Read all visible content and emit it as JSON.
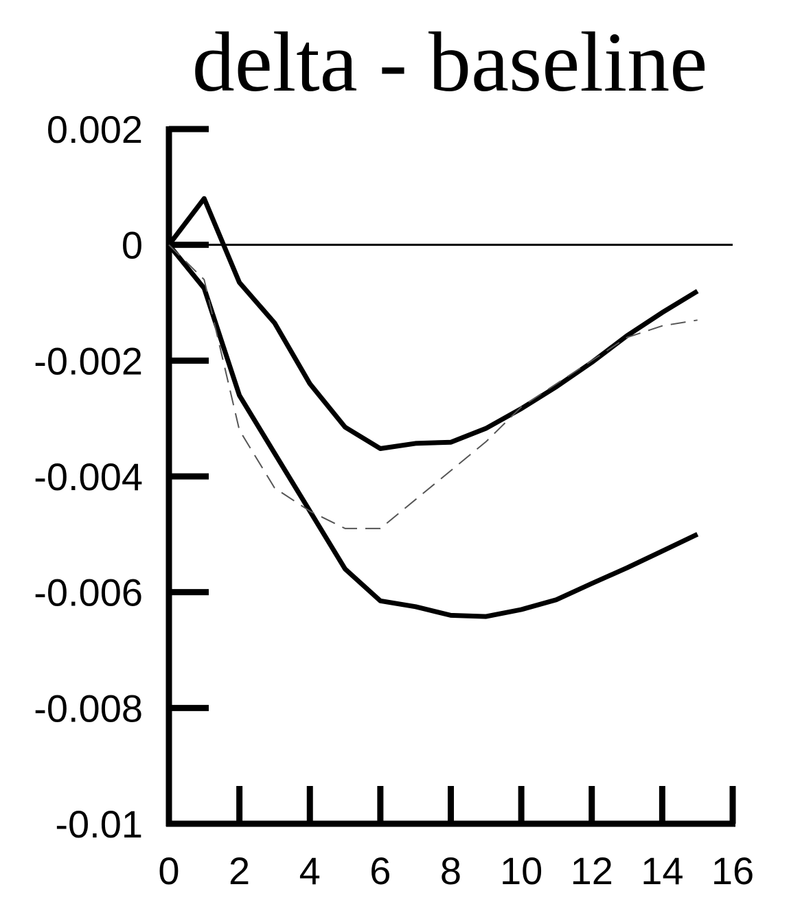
{
  "chart_data": {
    "type": "line",
    "title": "delta - baseline",
    "xlabel": "",
    "ylabel": "",
    "xlim": [
      0,
      16
    ],
    "ylim": [
      -0.01,
      0.002
    ],
    "grid": false,
    "x_ticks": [
      "0",
      "2",
      "4",
      "6",
      "8",
      "10",
      "12",
      "14",
      "16"
    ],
    "y_ticks": [
      "0.002",
      "0",
      "-0.002",
      "-0.004",
      "-0.006",
      "-0.008",
      "-0.01"
    ],
    "x_tick_values": [
      0,
      2,
      4,
      6,
      8,
      10,
      12,
      14,
      16
    ],
    "y_tick_values": [
      0.002,
      0,
      -0.002,
      -0.004,
      -0.006,
      -0.008,
      -0.01
    ],
    "reference_line_y": 0,
    "x": [
      0,
      1,
      2,
      3,
      4,
      5,
      6,
      7,
      8,
      9,
      10,
      11,
      12,
      13,
      14,
      15
    ],
    "series": [
      {
        "style": "solid-thick",
        "values": [
          0,
          0.0008,
          -0.00065,
          -0.00135,
          -0.0024,
          -0.00315,
          -0.00352,
          -0.00343,
          -0.00341,
          -0.00317,
          -0.00283,
          -0.00245,
          -0.00203,
          -0.00157,
          -0.00117,
          -0.0008
        ]
      },
      {
        "style": "solid-thick",
        "values": [
          0,
          -0.00075,
          -0.0026,
          -0.0036,
          -0.0046,
          -0.0056,
          -0.00615,
          -0.00625,
          -0.0064,
          -0.00642,
          -0.0063,
          -0.00613,
          -0.00585,
          -0.00558,
          -0.00529,
          -0.005
        ]
      },
      {
        "style": "dashed-thin",
        "values": [
          0,
          -0.0006,
          -0.0032,
          -0.0042,
          -0.0046,
          -0.0049,
          -0.0049,
          -0.0044,
          -0.0039,
          -0.0034,
          -0.0028,
          -0.0024,
          -0.002,
          -0.0016,
          -0.0014,
          -0.0013
        ]
      }
    ]
  }
}
